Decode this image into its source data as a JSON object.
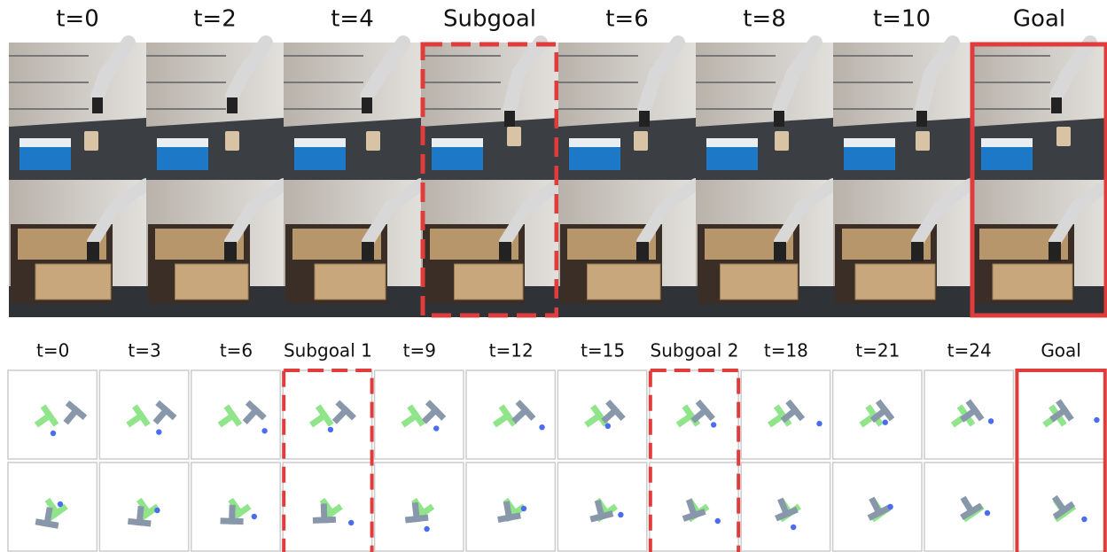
{
  "top": {
    "labels": [
      "t=0",
      "t=2",
      "t=4",
      "Subgoal",
      "t=6",
      "t=8",
      "t=10",
      "Goal"
    ]
  },
  "bottom": {
    "labels": [
      "t=0",
      "t=3",
      "t=6",
      "Subgoal 1",
      "t=9",
      "t=12",
      "t=15",
      "Subgoal 2",
      "t=18",
      "t=21",
      "t=24",
      "Goal"
    ]
  }
}
